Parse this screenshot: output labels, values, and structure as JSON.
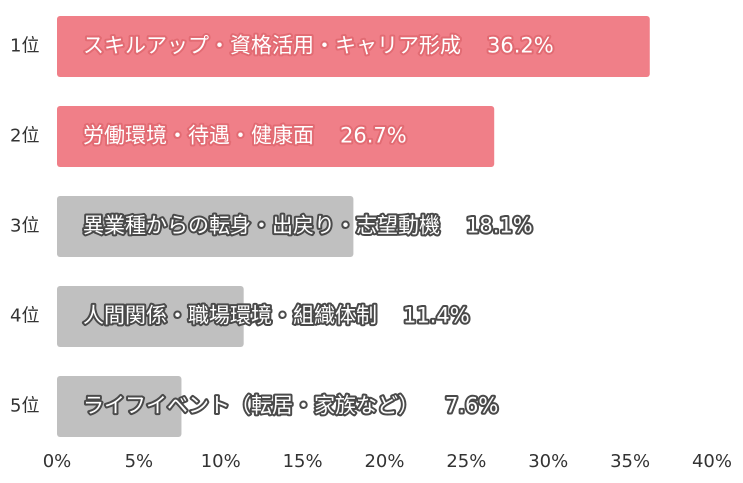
{
  "chart_data": {
    "type": "bar",
    "orientation": "horizontal",
    "categories": [
      "1位",
      "2位",
      "3位",
      "4位",
      "5位"
    ],
    "labels": [
      "スキルアップ・資格活用・キャリア形成",
      "労働環境・待遇・健康面",
      "異業種からの転身・出戻り・志望動機",
      "人間関係・職場環境・組織体制",
      "ライフイベント（転居・家族など）"
    ],
    "values": [
      36.2,
      26.7,
      18.1,
      11.4,
      7.6
    ],
    "value_labels": [
      "36.2%",
      "26.7%",
      "18.1%",
      "11.4%",
      "7.6%"
    ],
    "highlighted": [
      true,
      true,
      false,
      false,
      false
    ],
    "xlim": [
      0,
      40
    ],
    "xticks": [
      "0%",
      "5%",
      "10%",
      "15%",
      "20%",
      "25%",
      "30%",
      "35%",
      "40%"
    ],
    "xtick_values": [
      0,
      5,
      10,
      15,
      20,
      25,
      30,
      35,
      40
    ],
    "grid": false,
    "colors": {
      "highlight": "#f07f88",
      "normal": "#c0c0c0"
    }
  }
}
